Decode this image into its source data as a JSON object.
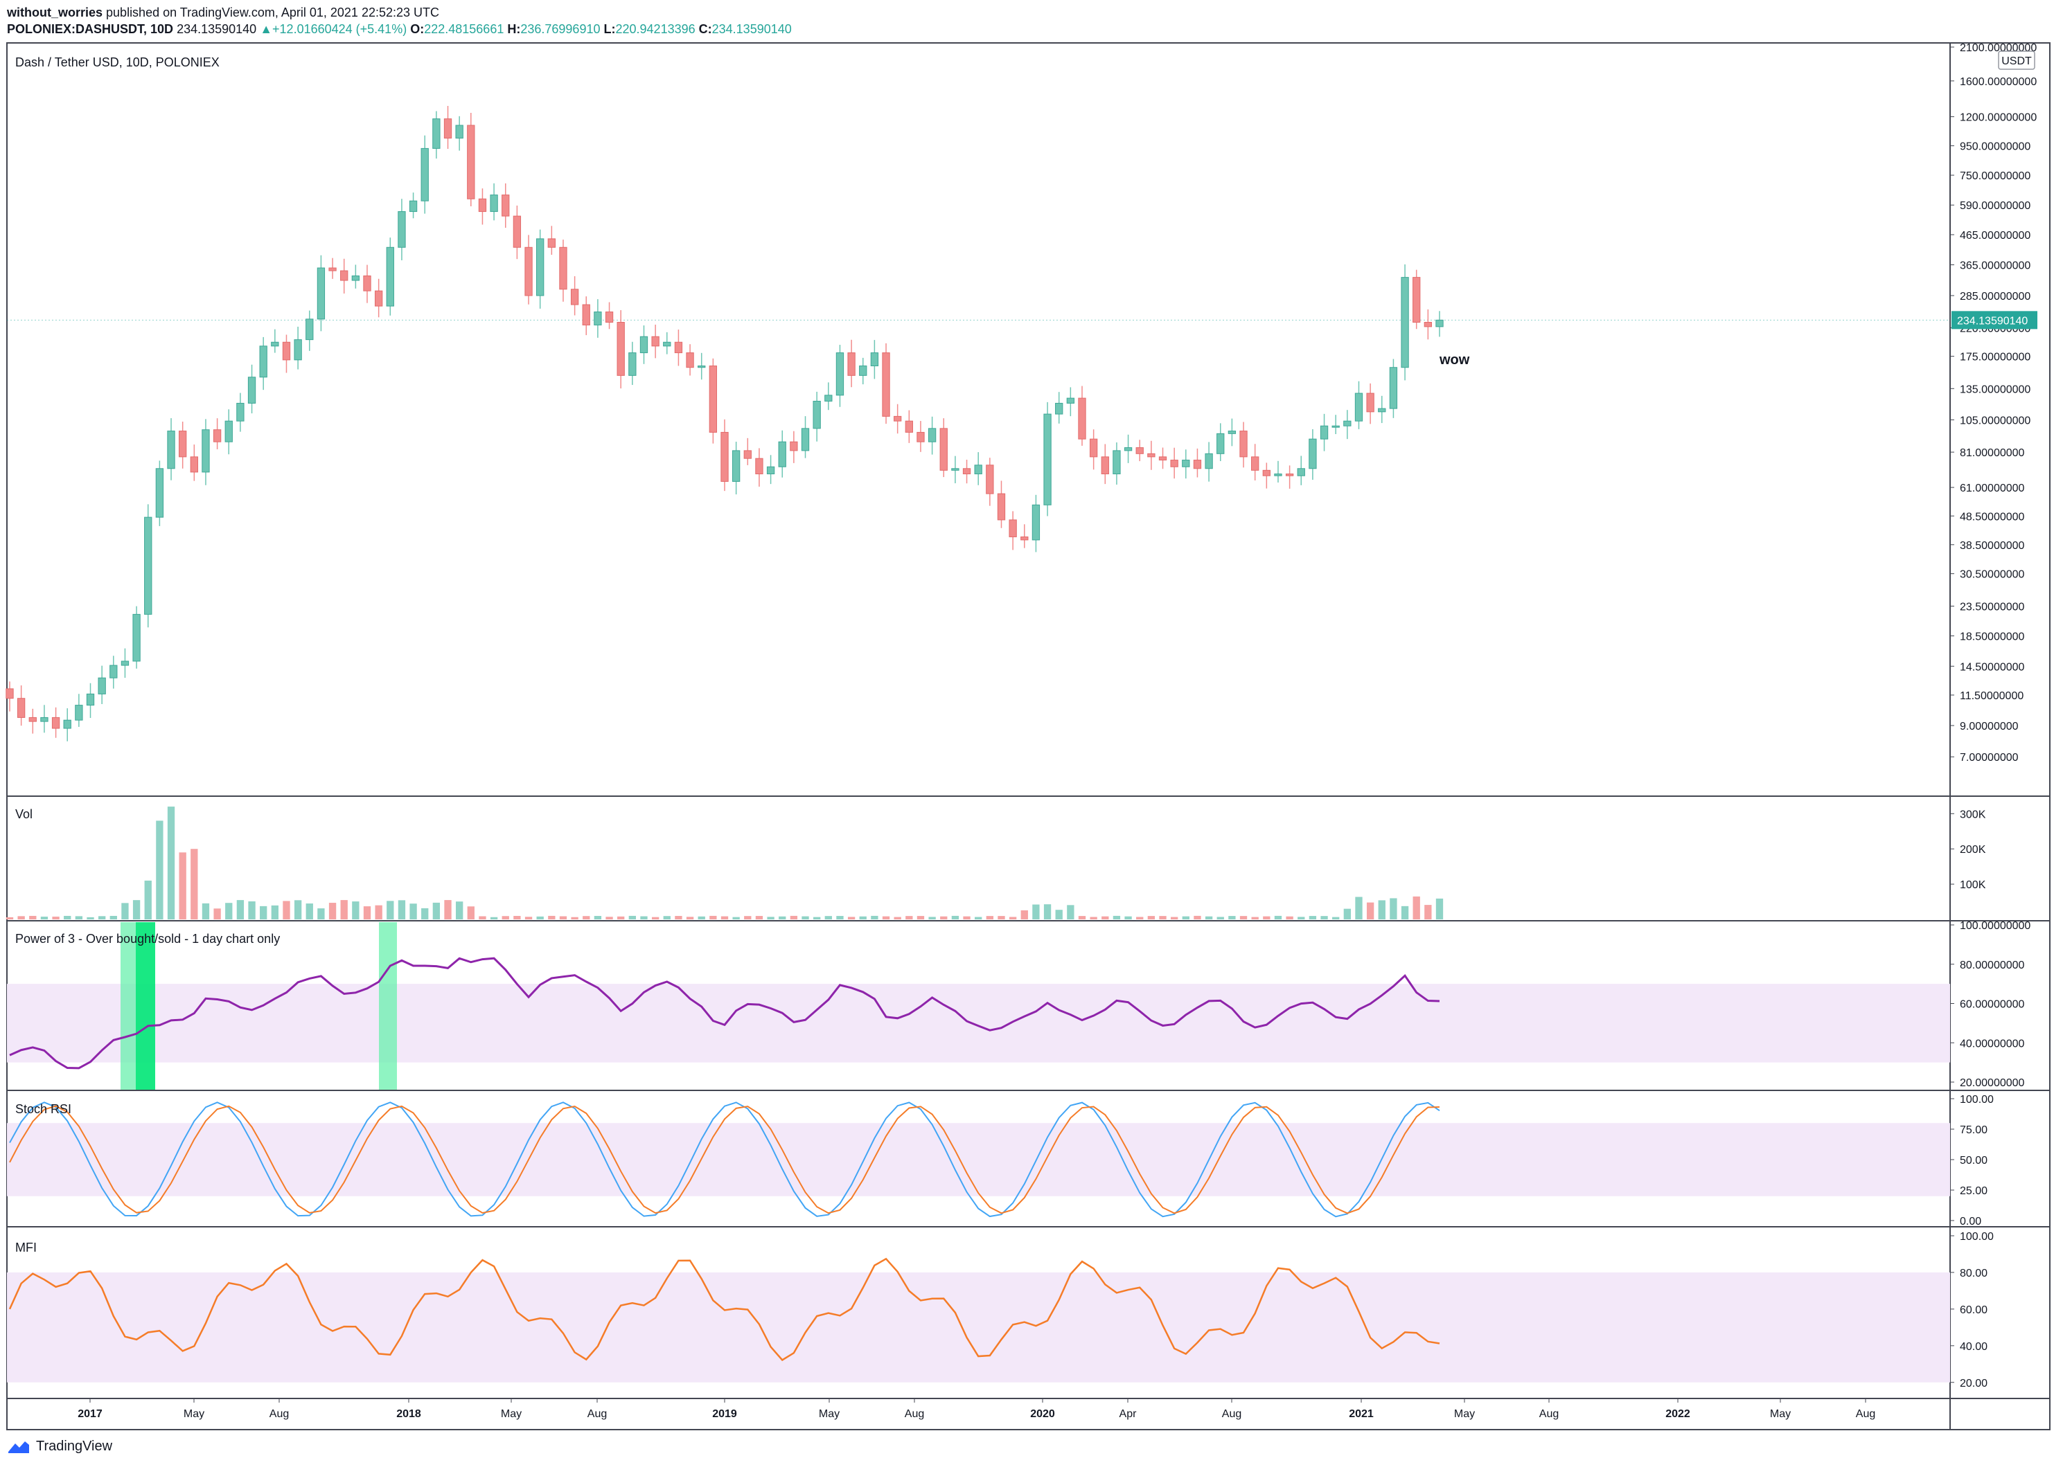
{
  "header": {
    "publisher": "without_worries",
    "published_text": "published on TradingView.com, April 01, 2021 22:52:23 UTC",
    "symbol_line": "POLONIEX:DASHUSDT, 10D",
    "last": "234.13590140",
    "change": "+12.01660424 (+5.41%)",
    "open_label": "O:",
    "open": "222.48156661",
    "high_label": "H:",
    "high": "236.76996910",
    "low_label": "L:",
    "low": "220.94213396",
    "close_label": "C:",
    "close": "234.13590140"
  },
  "footer": {
    "brand": "TradingView",
    "logo_icon": "tradingview-logo-icon"
  },
  "colors": {
    "up": "#26a69a",
    "up_candle": "#6ec6b4",
    "down": "#ef5350",
    "down_candle": "#f28b8b",
    "band": "#f3e8f9",
    "purple": "#8e24aa",
    "blue": "#42a5f5",
    "orange": "#f57c28",
    "green_strong": "#00e676",
    "green_light": "#69f0ae"
  },
  "chart_data": [
    {
      "type": "candlestick",
      "title": "Dash / Tether USD, 10D, POLONIEX",
      "scale": "log",
      "currency": "USDT",
      "last_price_label": "234.13590140",
      "annotation": "wow",
      "y_ticks": [
        "2100.00000000",
        "1600.00000000",
        "1200.00000000",
        "950.00000000",
        "750.00000000",
        "590.00000000",
        "465.00000000",
        "365.00000000",
        "285.00000000",
        "220.00000000",
        "175.00000000",
        "135.00000000",
        "105.00000000",
        "81.00000000",
        "61.00000000",
        "48.50000000",
        "38.50000000",
        "30.50000000",
        "23.50000000",
        "18.50000000",
        "14.50000000",
        "11.50000000",
        "9.00000000",
        "7.00000000"
      ],
      "x_ticks": [
        "2017",
        "May",
        "Aug",
        "2018",
        "May",
        "Aug",
        "2019",
        "May",
        "Aug",
        "2020",
        "Apr",
        "Aug",
        "2021",
        "May",
        "Aug",
        "2022",
        "May",
        "Aug"
      ],
      "closes": [
        11.2,
        9.6,
        9.3,
        9.6,
        8.8,
        9.4,
        10.6,
        11.6,
        13.2,
        14.6,
        15.1,
        22.0,
        48.0,
        71.0,
        96.0,
        78.0,
        69.0,
        97.0,
        88.0,
        104.0,
        120.0,
        148.0,
        190.0,
        196.0,
        170.0,
        200.0,
        236.0,
        356.0,
        348.0,
        322.0,
        334.0,
        296.0,
        262.0,
        420.0,
        560.0,
        610.0,
        930.0,
        1180.0,
        1010.0,
        1120.0,
        620.0,
        560.0,
        640.0,
        540.0,
        420.0,
        285.0,
        450.0,
        420.0,
        300.0,
        265.0,
        225.0,
        250.0,
        230.0,
        150.0,
        180.0,
        205.0,
        190.0,
        196.0,
        180.0,
        160.0,
        162.0,
        95.0,
        64.0,
        82.0,
        77.0,
        68.0,
        72.0,
        88.0,
        82.0,
        98.0,
        122.0,
        128.0,
        180.0,
        150.0,
        162.0,
        180.0,
        108.0,
        104.0,
        95.0,
        88.0,
        98.0,
        70.0,
        71.0,
        68.0,
        73.0,
        58.0,
        47.0,
        41.0,
        40.0,
        53.0,
        110.0,
        120.0,
        125.0,
        90.0,
        78.0,
        68.0,
        82.0,
        84.0,
        80.0,
        78.0,
        76.0,
        72.0,
        76.0,
        71.0,
        80.0,
        94.0,
        96.0,
        78.0,
        70.0,
        67.0,
        68.0,
        67.0,
        71.0,
        90.0,
        100.0,
        100.0,
        104.0,
        130.0,
        112.0,
        115.0,
        160.0,
        330.0,
        230.0,
        222.0,
        234.1
      ]
    },
    {
      "type": "bar",
      "title": "Vol",
      "y_ticks": [
        "300K",
        "200K",
        "100K"
      ]
    },
    {
      "type": "line",
      "title": "Power of 3 - Over bought/sold - 1 day chart only",
      "y_ticks": [
        "100.00000000",
        "80.00000000",
        "60.00000000",
        "40.00000000",
        "20.00000000"
      ],
      "band": [
        30,
        70
      ]
    },
    {
      "type": "line",
      "title": "Stoch RSI",
      "y_ticks": [
        "100.00",
        "75.00",
        "50.00",
        "25.00",
        "0.00"
      ],
      "band": [
        20,
        80
      ]
    },
    {
      "type": "line",
      "title": "MFI",
      "y_ticks": [
        "100.00",
        "80.00",
        "60.00",
        "40.00",
        "20.00"
      ],
      "band": [
        20,
        80
      ]
    }
  ]
}
